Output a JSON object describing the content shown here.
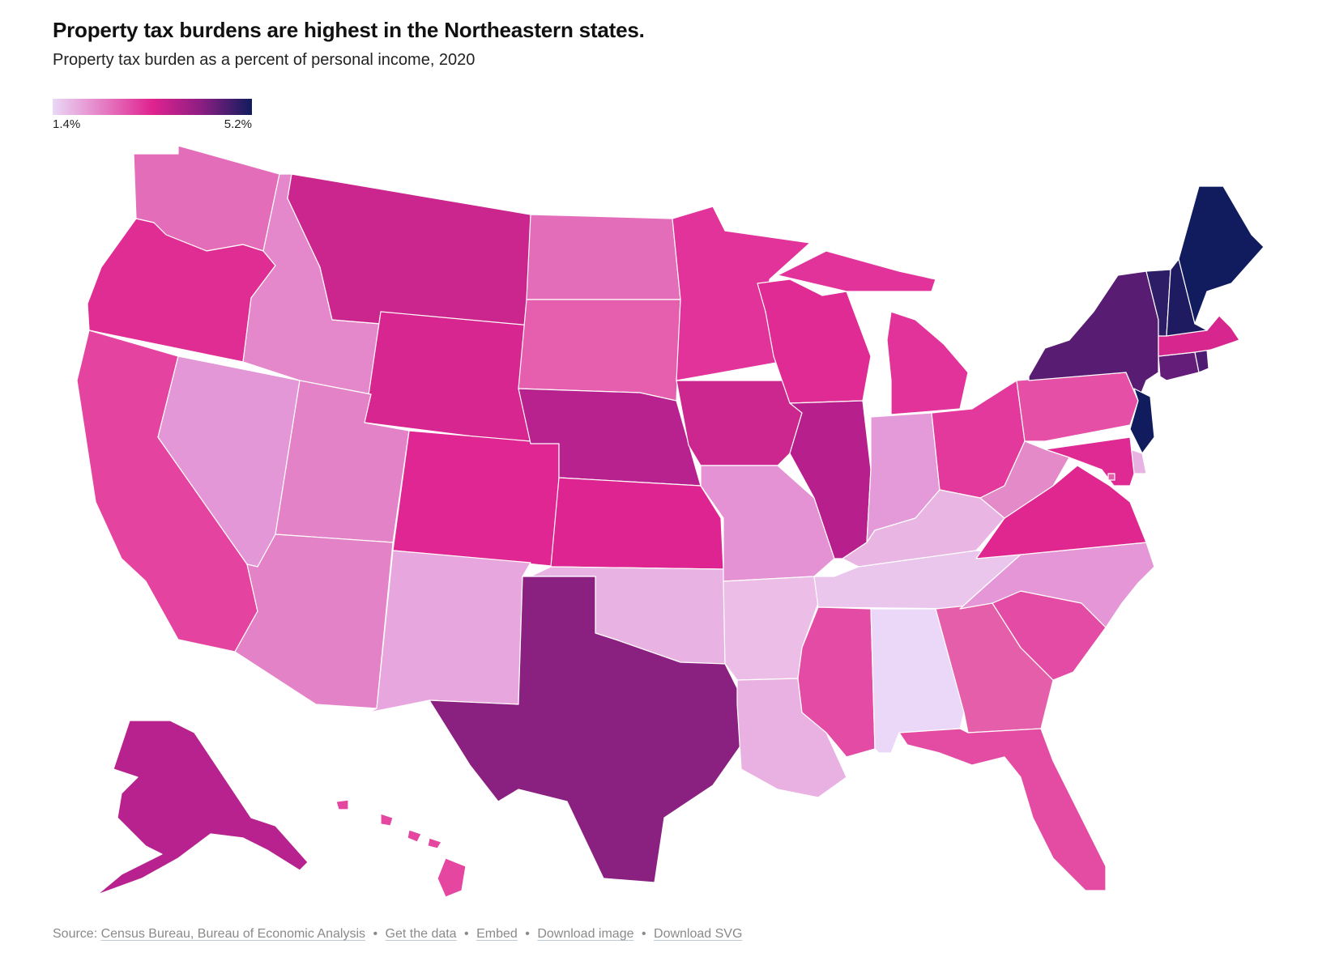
{
  "header": {
    "title": "Property tax burdens are highest in the Northeastern states.",
    "subtitle": "Property tax burden as a percent of personal income, 2020"
  },
  "legend": {
    "min_label": "1.4%",
    "max_label": "5.2%",
    "min_value": 1.4,
    "max_value": 5.2,
    "color_stops": [
      "#ead7f6",
      "#e57fc5",
      "#e0238f",
      "#8a1e82",
      "#101c5e"
    ]
  },
  "footer": {
    "source_prefix": "Source:",
    "source_link": "Census Bureau, Bureau of Economic Analysis",
    "links": [
      "Get the data",
      "Embed",
      "Download image",
      "Download SVG"
    ],
    "separator": "•"
  },
  "chart_data": {
    "type": "choropleth",
    "title": "Property tax burdens are highest in the Northeastern states.",
    "subtitle": "Property tax burden as a percent of personal income, 2020",
    "colors": {
      "WA": "#e46db9",
      "OR": "#e02d93",
      "CA": "#e444a0",
      "ID": "#e488cb",
      "NV": "#e497d6",
      "MT": "#cb268e",
      "WY": "#d82690",
      "UT": "#e482c8",
      "AZ": "#e482c8",
      "CO": "#e02693",
      "NM": "#e8a6df",
      "ND": "#e46db9",
      "SD": "#e55fae",
      "NE": "#b7228e",
      "KS": "#de2490",
      "OK": "#e8b2e3",
      "TX": "#8a2080",
      "MN": "#e2339a",
      "IA": "#cc278e",
      "MO": "#e592d5",
      "AR": "#ebbde7",
      "LA": "#e9b1e2",
      "WI": "#df2b93",
      "IL": "#b71f8d",
      "MI": "#e2339a",
      "IN": "#e499d8",
      "OH": "#e3399c",
      "KY": "#e9b5e3",
      "TN": "#eac5ec",
      "MS": "#e44ba5",
      "AL": "#ebd7f8",
      "GA": "#e55ea9",
      "FL": "#e44ba3",
      "SC": "#e44ba5",
      "NC": "#e596d6",
      "VA": "#e0268f",
      "WV": "#e48ac9",
      "PA": "#e550a6",
      "NY": "#581d73",
      "VT": "#2d1c66",
      "NH": "#1f1b60",
      "ME": "#101c5e",
      "MA": "#d7268e",
      "CT": "#641e7a",
      "RI": "#4f1c73",
      "NJ": "#101c5e",
      "DE": "#e8b2e3",
      "MD": "#de2a92",
      "DC": "#e55ea9",
      "AK": "#b7228e",
      "HI": "#e446a0"
    }
  }
}
